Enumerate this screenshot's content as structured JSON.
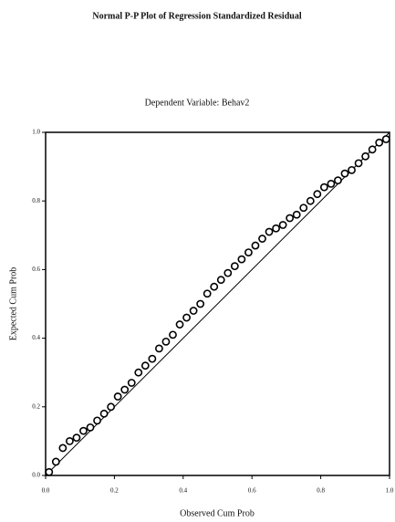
{
  "chart_data": {
    "type": "scatter",
    "title": "Normal P-P Plot of Regression Standardized Residual",
    "subtitle": "Dependent Variable: Behav2",
    "x_label": "Observed Cum Prob",
    "y_label": "Expected Cum Prob",
    "xlim": [
      0,
      1
    ],
    "ylim": [
      0,
      1
    ],
    "xticks": [
      {
        "value": 0,
        "label": "0.0"
      },
      0.2,
      0.4,
      0.6,
      0.8,
      {
        "value": 1,
        "label": "1.0"
      }
    ],
    "yticks": [
      {
        "value": 0,
        "label": "0.0"
      },
      0.2,
      0.4,
      0.6,
      0.8,
      {
        "value": 1,
        "label": "1.0"
      }
    ],
    "color": "#000000",
    "x": [
      0.01,
      0.03,
      0.05,
      0.07,
      0.09,
      0.11,
      0.13,
      0.15,
      0.17,
      0.19,
      0.21,
      0.23,
      0.25,
      0.27,
      0.29,
      0.31,
      0.33,
      0.35,
      0.37,
      0.39,
      0.41,
      0.43,
      0.45,
      0.47,
      0.49,
      0.51,
      0.53,
      0.55,
      0.57,
      0.59,
      0.61,
      0.63,
      0.65,
      0.67,
      0.69,
      0.71,
      0.73,
      0.75,
      0.77,
      0.79,
      0.81,
      0.83,
      0.85,
      0.87,
      0.89,
      0.91,
      0.93,
      0.95,
      0.97,
      0.99
    ],
    "values": [
      0.01,
      0.04,
      0.08,
      0.1,
      0.11,
      0.13,
      0.14,
      0.16,
      0.18,
      0.2,
      0.23,
      0.25,
      0.27,
      0.3,
      0.32,
      0.34,
      0.37,
      0.39,
      0.41,
      0.44,
      0.46,
      0.48,
      0.5,
      0.53,
      0.55,
      0.57,
      0.59,
      0.61,
      0.63,
      0.65,
      0.67,
      0.69,
      0.71,
      0.72,
      0.73,
      0.75,
      0.76,
      0.78,
      0.8,
      0.82,
      0.84,
      0.85,
      0.86,
      0.88,
      0.89,
      0.91,
      0.93,
      0.95,
      0.97,
      0.98
    ]
  }
}
